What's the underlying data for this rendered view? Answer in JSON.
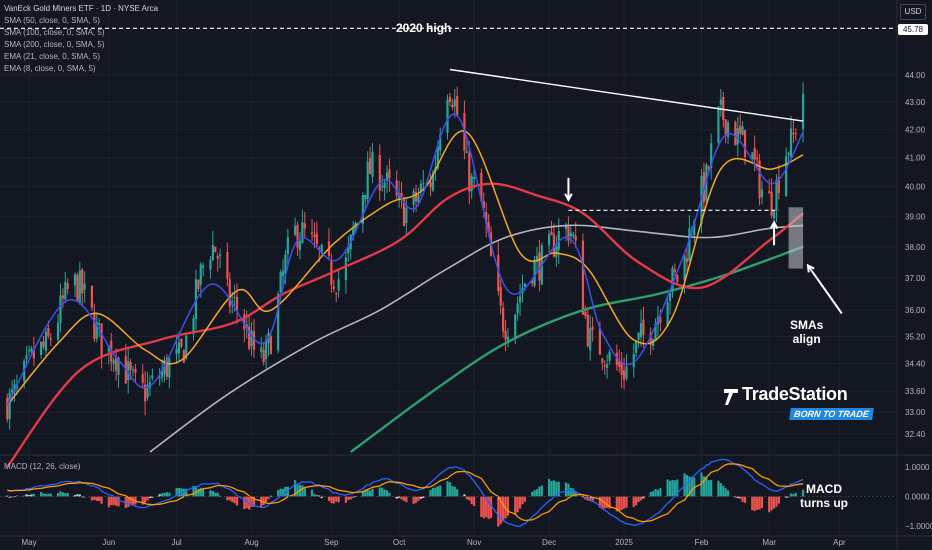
{
  "header": {
    "title": "VanEck Gold Miners ETF · 1D · NYSE Arca",
    "indicators": [
      "SMA (50, close, 0, SMA, 5)",
      "SMA (100, close, 0, SMA, 5)",
      "SMA (200, close, 0, SMA, 5)",
      "EMA (21, close, 0, SMA, 5)",
      "EMA (8, close, 0, SMA, 5)"
    ]
  },
  "currency": "USD",
  "last_price": "45.78",
  "annotations": {
    "high_label": "2020 high",
    "smas_align": [
      "SMAs",
      "align"
    ],
    "macd_turns": [
      "MACD",
      "turns up"
    ]
  },
  "brand": {
    "name": "TradeStation",
    "tagline": "BORN TO TRADE"
  },
  "macd_title": "MACD (12, 26, close)",
  "colors": {
    "background": "#131722",
    "up": "#26a69a",
    "down": "#ef5350",
    "sma50": "#e53945",
    "sma100": "#b2b5be",
    "sma200": "#2e9e6e",
    "ema21": "#f5a623",
    "ema8": "#3b4ef0",
    "macd_line": "#2962ff",
    "signal_line": "#ff9800"
  },
  "chart_data": [
    {
      "type": "candlestick",
      "title": "VanEck Gold Miners ETF",
      "ylabel": "USD",
      "yticks": [
        32.4,
        33.0,
        33.6,
        34.4,
        35.2,
        36.0,
        37.0,
        38.0,
        39.0,
        40.0,
        41.0,
        42.0,
        43.0,
        44.0
      ],
      "yscale": "log",
      "ylim": [
        31.9,
        46.5
      ],
      "xticks": [
        "May",
        "Jun",
        "Jul",
        "Aug",
        "Sep",
        "Oct",
        "Nov",
        "Dec",
        "2025",
        "Feb",
        "Mar",
        "Apr"
      ],
      "xtick_dates": [
        "2024-05-01",
        "2024-06-03",
        "2024-07-01",
        "2024-08-01",
        "2024-09-03",
        "2024-10-01",
        "2024-11-01",
        "2024-12-02",
        "2025-01-02",
        "2025-02-03",
        "2025-03-03",
        "2025-04-01"
      ],
      "xlim": [
        "2024-04-19",
        "2025-04-24"
      ],
      "close_anchors": [
        [
          "2024-04-22",
          33.3
        ],
        [
          "2024-05-06",
          34.8
        ],
        [
          "2024-05-20",
          36.8
        ],
        [
          "2024-06-03",
          34.8
        ],
        [
          "2024-06-17",
          33.6
        ],
        [
          "2024-07-01",
          34.5
        ],
        [
          "2024-07-16",
          38.0
        ],
        [
          "2024-07-24",
          36.2
        ],
        [
          "2024-08-05",
          34.5
        ],
        [
          "2024-08-20",
          38.5
        ],
        [
          "2024-09-06",
          37.0
        ],
        [
          "2024-09-20",
          40.6
        ],
        [
          "2024-10-04",
          39.2
        ],
        [
          "2024-10-14",
          40.2
        ],
        [
          "2024-10-21",
          43.6
        ],
        [
          "2024-11-01",
          40.0
        ],
        [
          "2024-11-14",
          35.6
        ],
        [
          "2024-11-26",
          37.4
        ],
        [
          "2024-12-10",
          38.6
        ],
        [
          "2024-12-20",
          35.0
        ],
        [
          "2025-01-02",
          34.2
        ],
        [
          "2025-01-10",
          35.2
        ],
        [
          "2025-01-24",
          37.0
        ],
        [
          "2025-02-03",
          39.8
        ],
        [
          "2025-02-11",
          42.5
        ],
        [
          "2025-02-20",
          41.6
        ],
        [
          "2025-03-03",
          39.5
        ],
        [
          "2025-03-12",
          41.5
        ],
        [
          "2025-03-17",
          43.4
        ]
      ],
      "sma50": [
        [
          "2024-04-22",
          31.5
        ],
        [
          "2024-05-22",
          34.2
        ],
        [
          "2024-06-24",
          35.1
        ],
        [
          "2024-07-24",
          35.6
        ],
        [
          "2024-08-14",
          36.5
        ],
        [
          "2024-09-04",
          37.2
        ],
        [
          "2024-10-01",
          38.2
        ],
        [
          "2024-10-21",
          39.6
        ],
        [
          "2024-11-08",
          40.1
        ],
        [
          "2024-11-27",
          39.7
        ],
        [
          "2024-12-16",
          39.1
        ],
        [
          "2025-01-08",
          37.5
        ],
        [
          "2025-02-03",
          36.7
        ],
        [
          "2025-03-03",
          38.2
        ],
        [
          "2025-03-17",
          39.1
        ]
      ],
      "sma100": [
        [
          "2024-06-20",
          31.9
        ],
        [
          "2024-07-22",
          33.5
        ],
        [
          "2024-08-26",
          35.0
        ],
        [
          "2024-09-23",
          36.0
        ],
        [
          "2024-10-21",
          37.3
        ],
        [
          "2024-11-14",
          38.3
        ],
        [
          "2024-12-10",
          38.7
        ],
        [
          "2025-01-08",
          38.5
        ],
        [
          "2025-02-06",
          38.3
        ],
        [
          "2025-03-03",
          38.6
        ],
        [
          "2025-03-17",
          38.7
        ]
      ],
      "sma200": [
        [
          "2024-09-11",
          31.9
        ],
        [
          "2024-10-15",
          33.6
        ],
        [
          "2024-11-14",
          35.0
        ],
        [
          "2024-12-16",
          36.0
        ],
        [
          "2025-01-16",
          36.5
        ],
        [
          "2025-02-13",
          37.1
        ],
        [
          "2025-03-17",
          38.0
        ]
      ],
      "ema21": [
        [
          "2024-04-22",
          33.2
        ],
        [
          "2024-05-13",
          35.0
        ],
        [
          "2024-05-29",
          35.9
        ],
        [
          "2024-06-18",
          34.8
        ],
        [
          "2024-07-03",
          34.5
        ],
        [
          "2024-07-26",
          36.6
        ],
        [
          "2024-08-09",
          36.0
        ],
        [
          "2024-09-04",
          38.1
        ],
        [
          "2024-09-26",
          39.4
        ],
        [
          "2024-10-11",
          39.9
        ],
        [
          "2024-10-29",
          41.9
        ],
        [
          "2024-11-20",
          37.8
        ],
        [
          "2024-12-05",
          37.8
        ],
        [
          "2024-12-18",
          37.3
        ],
        [
          "2025-01-06",
          35.1
        ],
        [
          "2025-01-22",
          35.8
        ],
        [
          "2025-02-11",
          40.6
        ],
        [
          "2025-03-04",
          40.6
        ],
        [
          "2025-03-17",
          41.1
        ]
      ],
      "ema8": [
        [
          "2024-04-22",
          33.2
        ],
        [
          "2024-05-17",
          36.3
        ],
        [
          "2024-06-07",
          34.5
        ],
        [
          "2024-06-21",
          33.8
        ],
        [
          "2024-07-15",
          36.8
        ],
        [
          "2024-08-06",
          35.0
        ],
        [
          "2024-08-20",
          38.2
        ],
        [
          "2024-09-06",
          37.6
        ],
        [
          "2024-09-24",
          40.2
        ],
        [
          "2024-10-08",
          39.3
        ],
        [
          "2024-10-25",
          42.5
        ],
        [
          "2024-11-15",
          36.6
        ],
        [
          "2024-12-10",
          38.3
        ],
        [
          "2024-12-24",
          35.3
        ],
        [
          "2025-01-07",
          34.5
        ],
        [
          "2025-01-27",
          37.8
        ],
        [
          "2025-02-13",
          41.8
        ],
        [
          "2025-03-04",
          40.1
        ],
        [
          "2025-03-17",
          41.9
        ]
      ],
      "trendline": [
        [
          "2024-10-22",
          44.2
        ],
        [
          "2025-03-17",
          42.3
        ]
      ],
      "reference_line": {
        "value": 45.78,
        "label": "2020 high"
      },
      "support_line": {
        "value": 39.2,
        "start": "2024-12-10",
        "end": "2025-03-07"
      },
      "highlight_box": {
        "start": "2025-03-11",
        "end": "2025-03-17",
        "y0": 37.3,
        "y1": 39.3
      }
    },
    {
      "type": "bar+line",
      "title": "MACD (12, 26, close)",
      "yticks": [
        1.0,
        0.0,
        -1.0
      ],
      "ylim": [
        -1.3,
        1.3
      ],
      "macd_anchors": [
        [
          "2024-04-22",
          0.2
        ],
        [
          "2024-05-20",
          0.5
        ],
        [
          "2024-06-17",
          -0.35
        ],
        [
          "2024-07-16",
          0.45
        ],
        [
          "2024-08-05",
          -0.35
        ],
        [
          "2024-08-23",
          0.5
        ],
        [
          "2024-09-09",
          0.05
        ],
        [
          "2024-09-25",
          0.6
        ],
        [
          "2024-10-08",
          0.2
        ],
        [
          "2024-10-24",
          1.0
        ],
        [
          "2024-11-18",
          -1.0
        ],
        [
          "2024-12-10",
          0.2
        ],
        [
          "2025-01-06",
          -0.95
        ],
        [
          "2025-02-12",
          1.25
        ],
        [
          "2025-03-06",
          0.2
        ],
        [
          "2025-03-17",
          0.55
        ]
      ]
    }
  ]
}
